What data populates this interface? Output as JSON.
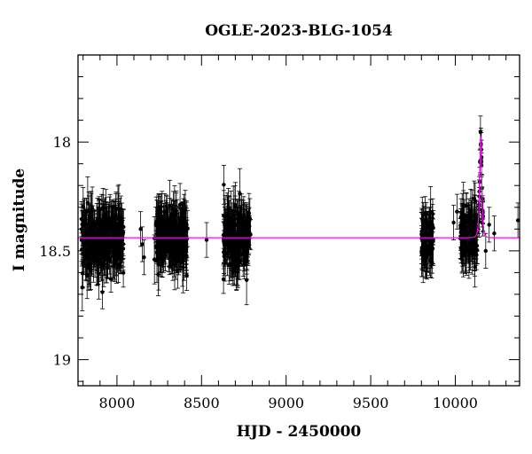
{
  "chart_data": {
    "type": "scatter",
    "title": "OGLE-2023-BLG-1054",
    "xlabel": "HJD - 2450000",
    "ylabel": "I magnitude",
    "xlim": [
      7770,
      10380
    ],
    "ylim": [
      19.12,
      17.6
    ],
    "y_inverted": true,
    "x_ticks": [
      "8000",
      "8500",
      "9000",
      "9500",
      "10000"
    ],
    "y_ticks": [
      "18",
      "18.5",
      "19"
    ],
    "baseline_magnitude": 18.44,
    "model_color": "#ff00ff",
    "point_color": "#000000",
    "event": {
      "t0": 10150,
      "peak_magnitude": 17.97,
      "tE": 8
    },
    "seasons": [
      {
        "start": 7790,
        "end": 8040,
        "mean": 18.45,
        "scatter": 0.07
      },
      {
        "start": 8220,
        "end": 8420,
        "mean": 18.44,
        "scatter": 0.06
      },
      {
        "start": 8630,
        "end": 8790,
        "mean": 18.44,
        "scatter": 0.07
      },
      {
        "start": 9800,
        "end": 9870,
        "mean": 18.45,
        "scatter": 0.06
      },
      {
        "start": 10030,
        "end": 10130,
        "mean": 18.43,
        "scatter": 0.06
      }
    ],
    "isolated_points": [
      {
        "x": 8140,
        "y": 18.4
      },
      {
        "x": 8150,
        "y": 18.47
      },
      {
        "x": 8160,
        "y": 18.53
      },
      {
        "x": 8530,
        "y": 18.45
      },
      {
        "x": 9990,
        "y": 18.37
      },
      {
        "x": 10010,
        "y": 18.32
      },
      {
        "x": 10180,
        "y": 18.5
      },
      {
        "x": 10200,
        "y": 18.38
      },
      {
        "x": 10230,
        "y": 18.42
      },
      {
        "x": 10370,
        "y": 18.36
      }
    ]
  }
}
